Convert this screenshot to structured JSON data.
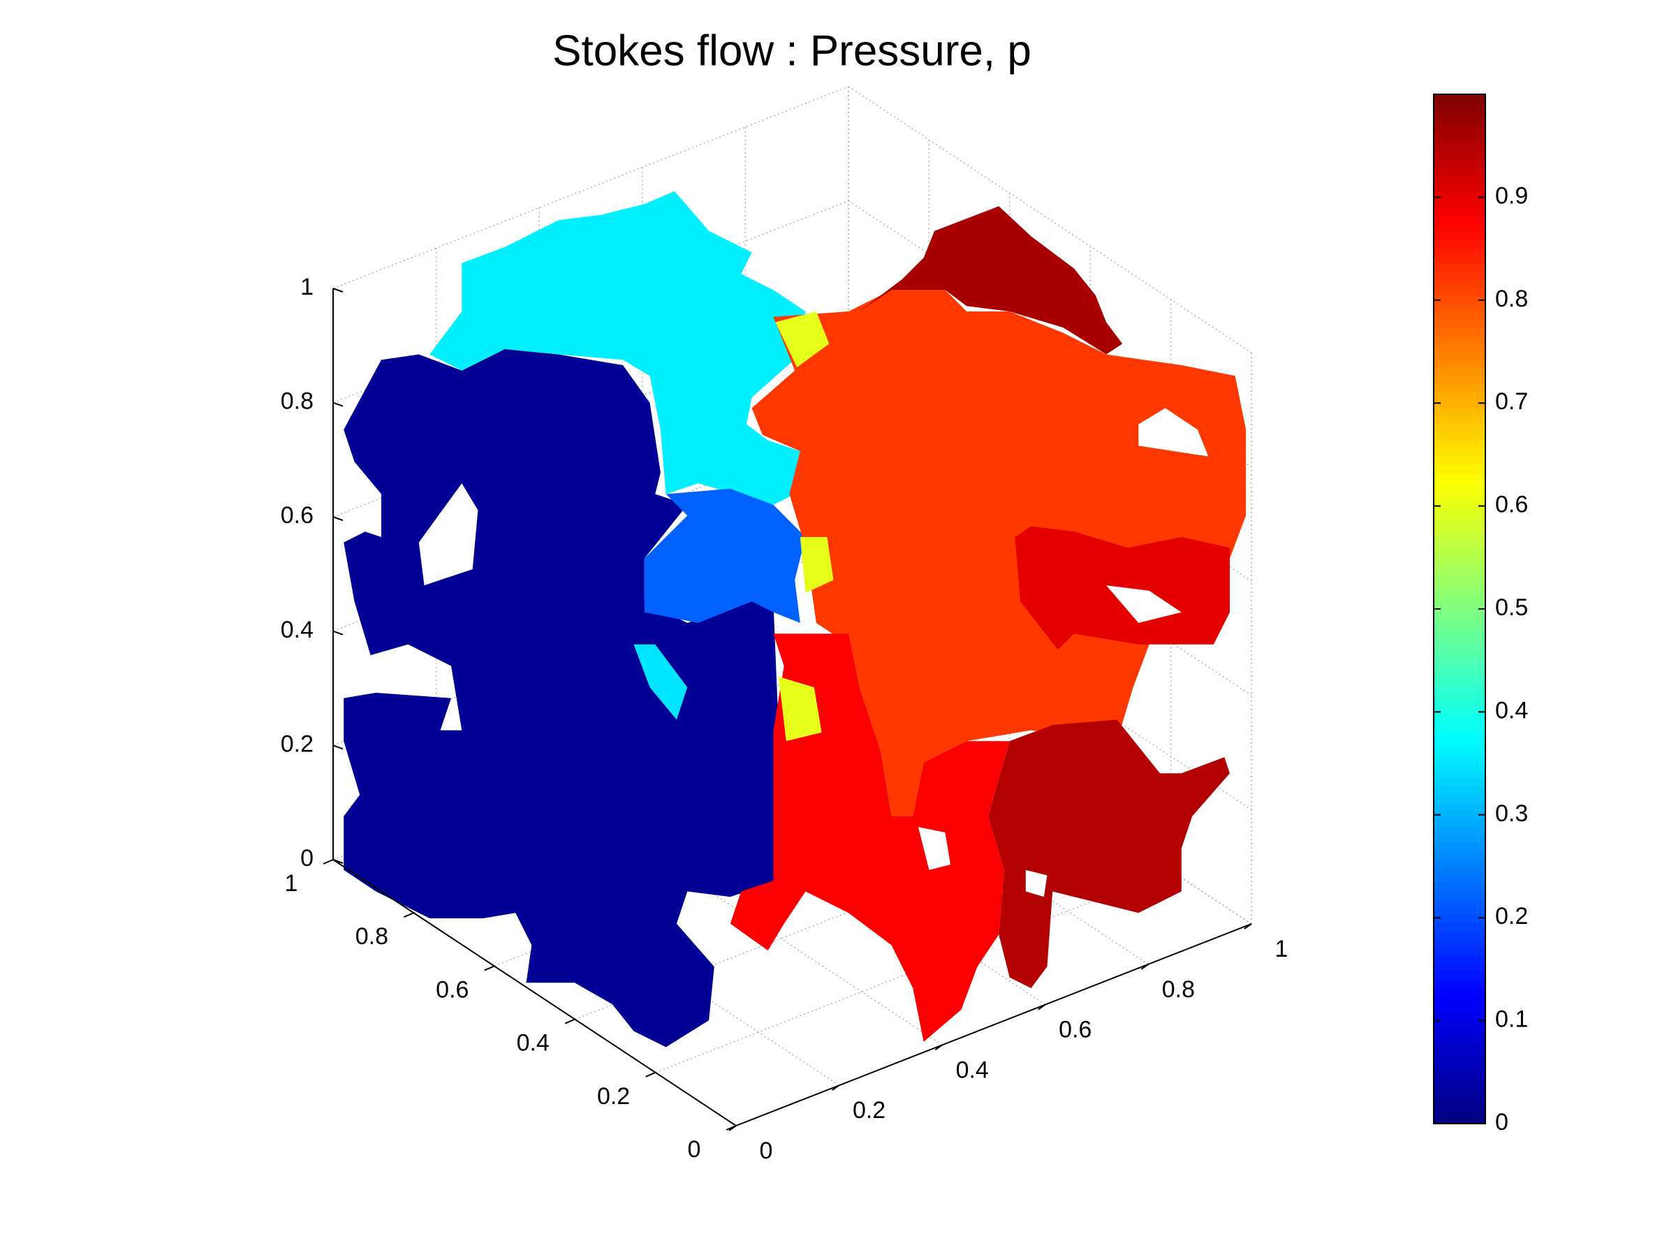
{
  "chart_data": {
    "type": "surface3d",
    "title": "Stokes flow : Pressure, p",
    "colormap": "jet",
    "values": [
      0.02,
      0.36,
      0.22,
      0.35,
      0.82,
      0.96,
      0.95,
      0.88,
      0.9,
      0.6,
      0.6,
      0.6
    ],
    "xlim": [
      0,
      1
    ],
    "xticks": [
      0,
      0.2,
      0.4,
      0.6,
      0.8,
      1
    ],
    "ylim": [
      0,
      1
    ],
    "yticks": [
      0,
      0.2,
      0.4,
      0.6,
      0.8,
      1
    ],
    "zlim": [
      0,
      1
    ],
    "zticks": [
      0,
      0.2,
      0.4,
      0.6,
      0.8,
      1
    ],
    "grid": true,
    "colorbar": {
      "lim": [
        0,
        1
      ],
      "ticks": [
        0,
        0.1,
        0.2,
        0.3,
        0.4,
        0.5,
        0.6,
        0.7,
        0.8,
        0.9
      ]
    }
  }
}
